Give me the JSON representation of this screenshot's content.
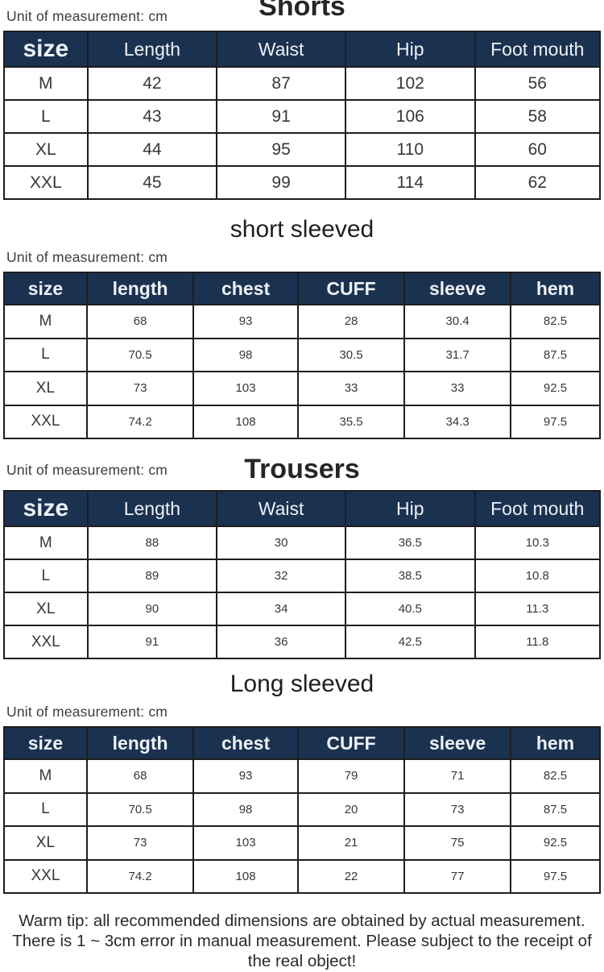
{
  "page": {
    "unit_label": "Unit of measurement: cm",
    "warm_tip_lines": [
      "Warm tip: all recommended dimensions are obtained by actual measurement.",
      "There is 1 ~ 3cm error in manual measurement. Please subject to the receipt of",
      "the real object!"
    ]
  },
  "colors": {
    "header_bg": "#1b3150",
    "header_text": "#edf1f6",
    "body_text": "#373737",
    "border": "#1d1d1d",
    "title_text": "#262626"
  },
  "sections": [
    {
      "title": "Shorts",
      "columns": [
        "size",
        "Length",
        "Waist",
        "Hip",
        "Foot mouth"
      ],
      "rows": [
        [
          "M",
          "42",
          "87",
          "102",
          "56"
        ],
        [
          "L",
          "43",
          "91",
          "106",
          "58"
        ],
        [
          "XL",
          "44",
          "95",
          "110",
          "60"
        ],
        [
          "XXL",
          "45",
          "99",
          "114",
          "62"
        ]
      ]
    },
    {
      "title": "short sleeved",
      "columns": [
        "size",
        "length",
        "chest",
        "CUFF",
        "sleeve",
        "hem"
      ],
      "rows": [
        [
          "M",
          "68",
          "93",
          "28",
          "30.4",
          "82.5"
        ],
        [
          "L",
          "70.5",
          "98",
          "30.5",
          "31.7",
          "87.5"
        ],
        [
          "XL",
          "73",
          "103",
          "33",
          "33",
          "92.5"
        ],
        [
          "XXL",
          "74.2",
          "108",
          "35.5",
          "34.3",
          "97.5"
        ]
      ]
    },
    {
      "title": "Trousers",
      "columns": [
        "size",
        "Length",
        "Waist",
        "Hip",
        "Foot mouth"
      ],
      "rows": [
        [
          "M",
          "88",
          "30",
          "36.5",
          "10.3"
        ],
        [
          "L",
          "89",
          "32",
          "38.5",
          "10.8"
        ],
        [
          "XL",
          "90",
          "34",
          "40.5",
          "11.3"
        ],
        [
          "XXL",
          "91",
          "36",
          "42.5",
          "11.8"
        ]
      ]
    },
    {
      "title": "Long sleeved",
      "columns": [
        "size",
        "length",
        "chest",
        "CUFF",
        "sleeve",
        "hem"
      ],
      "rows": [
        [
          "M",
          "68",
          "93",
          "79",
          "71",
          "82.5"
        ],
        [
          "L",
          "70.5",
          "98",
          "20",
          "73",
          "87.5"
        ],
        [
          "XL",
          "73",
          "103",
          "21",
          "75",
          "92.5"
        ],
        [
          "XXL",
          "74.2",
          "108",
          "22",
          "77",
          "97.5"
        ]
      ]
    }
  ]
}
